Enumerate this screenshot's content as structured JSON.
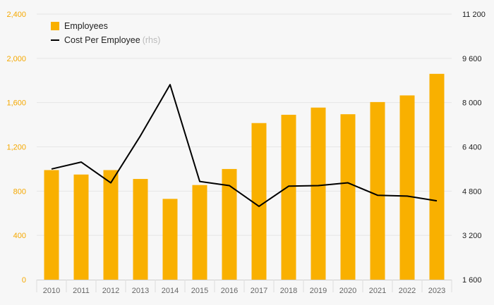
{
  "colors": {
    "bar": "#f9b000",
    "line": "#000000",
    "left_axis_text": "#f5a800",
    "right_axis_text": "#222222",
    "x_axis_text": "#666666",
    "grid": "#e6e6e6",
    "background": "#f7f7f7"
  },
  "legend": {
    "employees_label": "Employees",
    "cost_label": "Cost Per Employee",
    "cost_suffix": "(rhs)"
  },
  "chart_data": {
    "type": "bar",
    "categories": [
      "2010",
      "2011",
      "2012",
      "2013",
      "2014",
      "2015",
      "2016",
      "2017",
      "2018",
      "2019",
      "2020",
      "2021",
      "2022",
      "2023"
    ],
    "series": [
      {
        "name": "Employees",
        "type": "bar",
        "axis": "left",
        "values": [
          990,
          950,
          990,
          910,
          730,
          855,
          1000,
          1415,
          1490,
          1555,
          1495,
          1605,
          1665,
          1860
        ]
      },
      {
        "name": "Cost Per Employee",
        "type": "line",
        "axis": "right",
        "values": [
          5600,
          5850,
          5100,
          6800,
          8650,
          5150,
          5000,
          4250,
          4980,
          5000,
          5100,
          4650,
          4620,
          4450
        ]
      }
    ],
    "y_left": {
      "min": 0,
      "max": 2400,
      "ticks": [
        0,
        400,
        800,
        1200,
        1600,
        2000,
        2400
      ],
      "tick_labels": [
        "0",
        "400",
        "800",
        "1,200",
        "1,600",
        "2,000",
        "2,400"
      ]
    },
    "y_right": {
      "min": 1600,
      "max": 11200,
      "ticks": [
        1600,
        3200,
        4800,
        6400,
        8000,
        9600,
        11200
      ],
      "tick_labels": [
        "1 600",
        "3 200",
        "4 800",
        "6 400",
        "8 000",
        "9 600",
        "11 200"
      ]
    },
    "grid": true,
    "legend_position": "top-left"
  }
}
